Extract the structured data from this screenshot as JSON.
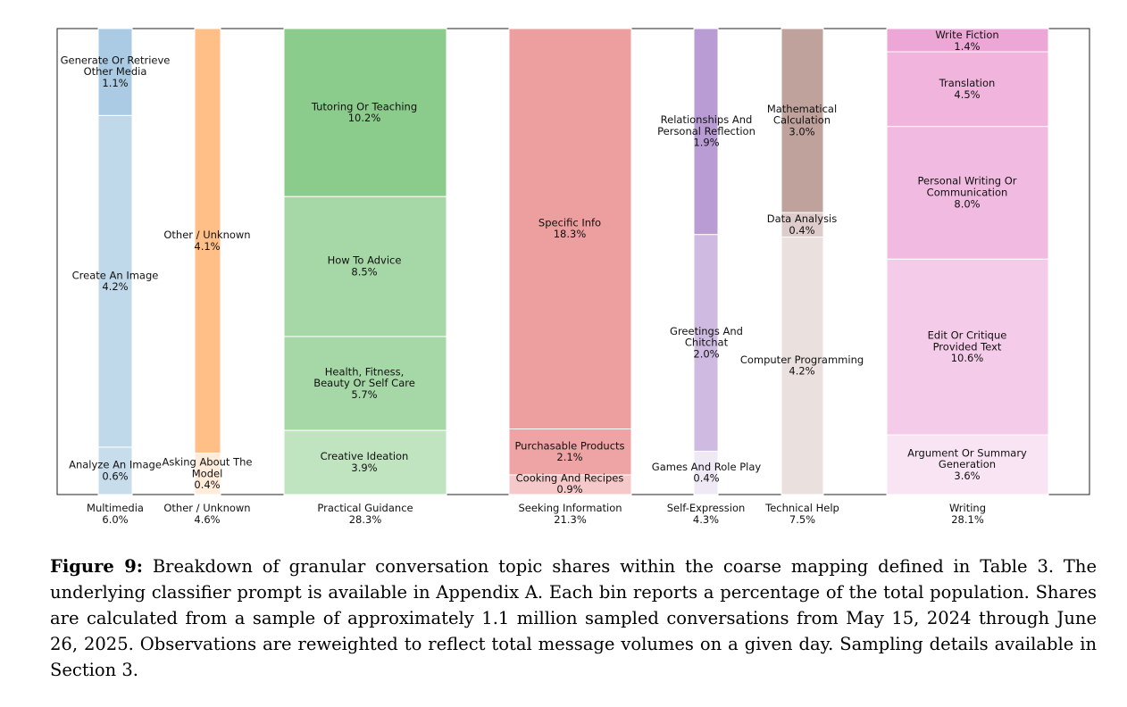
{
  "chart_data": {
    "type": "bar",
    "subtype": "stacked-marimekko",
    "y_total_percent": 100,
    "grid": false,
    "legend": "none",
    "groups": [
      {
        "name": "Multimedia",
        "share": "6.0%",
        "value": 6.0,
        "color": "#1f77b4",
        "segments": [
          {
            "lines": [
              "Analyze An Image",
              "0.6%"
            ],
            "value": 0.6,
            "tint": 0.75
          },
          {
            "lines": [
              "Create An Image",
              "4.2%"
            ],
            "value": 4.2,
            "tint": 0.72
          },
          {
            "lines": [
              "Generate Or Retrieve",
              "Other Media",
              "1.1%"
            ],
            "value": 1.1,
            "tint": 0.62
          }
        ]
      },
      {
        "name": "Other / Unknown",
        "share": "4.6%",
        "value": 4.6,
        "color": "#ff7f0e",
        "segments": [
          {
            "lines": [
              "Asking About The",
              "Model",
              "0.4%"
            ],
            "value": 0.4,
            "tint": 0.85
          },
          {
            "lines": [
              "Other / Unknown",
              "4.1%"
            ],
            "value": 4.1,
            "tint": 0.5
          }
        ]
      },
      {
        "name": "Practical Guidance",
        "share": "28.3%",
        "value": 28.3,
        "color": "#2ca02c",
        "segments": [
          {
            "lines": [
              "Creative Ideation",
              "3.9%"
            ],
            "value": 3.9,
            "tint": 0.7
          },
          {
            "lines": [
              "Health, Fitness,",
              "Beauty Or Self Care",
              "5.7%"
            ],
            "value": 5.7,
            "tint": 0.58
          },
          {
            "lines": [
              "How To Advice",
              "8.5%"
            ],
            "value": 8.5,
            "tint": 0.58
          },
          {
            "lines": [
              "Tutoring Or Teaching",
              "10.2%"
            ],
            "value": 10.2,
            "tint": 0.45
          }
        ]
      },
      {
        "name": "Seeking Information",
        "share": "21.3%",
        "value": 21.3,
        "color": "#d62728",
        "segments": [
          {
            "lines": [
              "Cooking And Recipes",
              "0.9%"
            ],
            "value": 0.9,
            "tint": 0.75
          },
          {
            "lines": [
              "Purchasable Products",
              "2.1%"
            ],
            "value": 2.1,
            "tint": 0.58
          },
          {
            "lines": [
              "Specific Info",
              "18.3%"
            ],
            "value": 18.3,
            "tint": 0.55
          }
        ]
      },
      {
        "name": "Self-Expression",
        "share": "4.3%",
        "value": 4.3,
        "color": "#9467bd",
        "segments": [
          {
            "lines": [
              "Games And Role Play",
              "0.4%"
            ],
            "value": 0.4,
            "tint": 0.85
          },
          {
            "lines": [
              "Greetings And",
              "Chitchat",
              "2.0%"
            ],
            "value": 2.0,
            "tint": 0.55
          },
          {
            "lines": [
              "Relationships And",
              "Personal Reflection",
              "1.9%"
            ],
            "value": 1.9,
            "tint": 0.35
          }
        ]
      },
      {
        "name": "Technical Help",
        "share": "7.5%",
        "value": 7.5,
        "color": "#8c564b",
        "segments": [
          {
            "lines": [
              "Computer Programming",
              "4.2%"
            ],
            "value": 4.2,
            "tint": 0.82
          },
          {
            "lines": [
              "Data Analysis",
              "0.4%"
            ],
            "value": 0.4,
            "tint": 0.7
          },
          {
            "lines": [
              "Mathematical",
              "Calculation",
              "3.0%"
            ],
            "value": 3.0,
            "tint": 0.45
          }
        ]
      },
      {
        "name": "Writing",
        "share": "28.1%",
        "value": 28.1,
        "color": "#e377c2",
        "segments": [
          {
            "lines": [
              "Argument Or Summary",
              "Generation",
              "3.6%"
            ],
            "value": 3.6,
            "tint": 0.8
          },
          {
            "lines": [
              "Edit Or Critique",
              "Provided Text",
              "10.6%"
            ],
            "value": 10.6,
            "tint": 0.62
          },
          {
            "lines": [
              "Personal Writing Or",
              "Communication",
              "8.0%"
            ],
            "value": 8.0,
            "tint": 0.5
          },
          {
            "lines": [
              "Translation",
              "4.5%"
            ],
            "value": 4.5,
            "tint": 0.45
          },
          {
            "lines": [
              "Write Fiction",
              "1.4%"
            ],
            "value": 1.4,
            "tint": 0.35
          }
        ]
      }
    ]
  },
  "caption": {
    "label": "Figure 9:",
    "text": "Breakdown of granular conversation topic shares within the coarse mapping defined in Table 3. The underlying classifier prompt is available in Appendix A. Each bin reports a percentage of the total population. Shares are calculated from a sample of approximately 1.1 million sampled conversations from May 15, 2024 through June 26, 2025. Observations are reweighted to reflect total message volumes on a given day. Sampling details available in Section 3."
  }
}
